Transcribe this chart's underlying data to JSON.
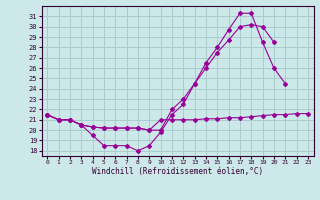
{
  "bg_color": "#cce8e8",
  "line_color": "#990099",
  "grid_color": "#aacccc",
  "xlabel": "Windchill (Refroidissement éolien,°C)",
  "xlim": [
    -0.5,
    23.5
  ],
  "ylim": [
    17.5,
    32.0
  ],
  "yticks": [
    18,
    19,
    20,
    21,
    22,
    23,
    24,
    25,
    26,
    27,
    28,
    29,
    30,
    31
  ],
  "xticks": [
    0,
    1,
    2,
    3,
    4,
    5,
    6,
    7,
    8,
    9,
    10,
    11,
    12,
    13,
    14,
    15,
    16,
    17,
    18,
    19,
    20,
    21,
    22,
    23
  ],
  "line1_x": [
    0,
    1,
    2,
    3,
    4,
    5,
    6,
    7,
    8,
    9,
    10,
    11,
    12,
    13,
    14,
    15,
    16,
    17,
    18,
    19,
    20,
    21
  ],
  "line1_y": [
    21.5,
    21.0,
    21.0,
    20.5,
    19.5,
    18.5,
    18.5,
    18.5,
    18.0,
    18.5,
    19.8,
    21.5,
    22.5,
    24.5,
    26.5,
    28.0,
    29.7,
    31.3,
    31.3,
    28.5,
    26.0,
    24.5
  ],
  "line2_x": [
    0,
    1,
    2,
    3,
    4,
    5,
    6,
    7,
    8,
    9,
    10,
    11,
    12,
    13,
    14,
    15,
    16,
    17,
    18,
    19,
    20
  ],
  "line2_y": [
    21.5,
    21.0,
    21.0,
    20.5,
    20.3,
    20.2,
    20.2,
    20.2,
    20.2,
    20.0,
    20.0,
    22.0,
    23.0,
    24.5,
    26.0,
    27.5,
    28.7,
    30.0,
    30.2,
    30.0,
    28.5
  ],
  "line3_x": [
    0,
    1,
    2,
    3,
    4,
    5,
    6,
    7,
    8,
    9,
    10,
    11,
    12,
    13,
    14,
    15,
    16,
    17,
    18,
    19,
    20,
    21,
    22,
    23
  ],
  "line3_y": [
    21.5,
    21.0,
    21.0,
    20.5,
    20.3,
    20.2,
    20.2,
    20.2,
    20.2,
    20.0,
    21.0,
    21.0,
    21.0,
    21.0,
    21.1,
    21.1,
    21.2,
    21.2,
    21.3,
    21.4,
    21.5,
    21.5,
    21.6,
    21.6
  ]
}
